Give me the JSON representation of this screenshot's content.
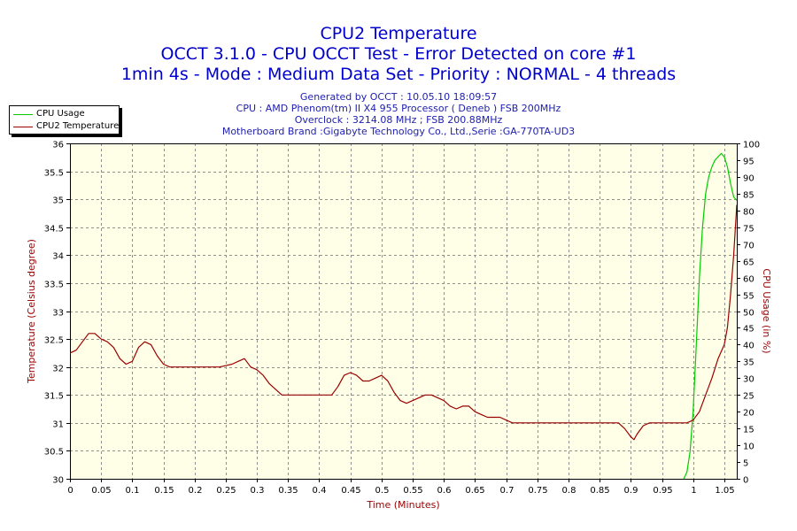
{
  "titles": {
    "line1": "CPU2 Temperature",
    "line2": "OCCT 3.1.0 - CPU OCCT Test - Error Detected on core #1",
    "line3": "1min 4s - Mode : Medium Data Set - Priority : NORMAL - 4 threads"
  },
  "info": {
    "generated": "Generated by OCCT : 10.05.10 18:09:57",
    "cpu": "CPU : AMD Phenom(tm) II X4 955 Processor ( Deneb ) FSB 200MHz",
    "overclock": "Overclock : 3214.08 MHz ; FSB 200.88MHz",
    "motherboard": "Motherboard Brand :Gigabyte Technology Co., Ltd.,Serie :GA-770TA-UD3"
  },
  "colors": {
    "plot_bg": "#ffffe8",
    "grid": "#909090",
    "cpu_usage": "#00cc00",
    "temperature": "#990000",
    "axis_label": "#990000"
  },
  "chart_data": {
    "type": "line",
    "xlabel": "Time (Minutes)",
    "ylabel": "Temperature (Celsius degree)",
    "y2label": "CPU Usage (in %)",
    "xlim": [
      0,
      1.07
    ],
    "ylim": [
      30,
      36
    ],
    "y2lim": [
      0,
      100
    ],
    "x_ticks": [
      "0",
      "0.05",
      "0.1",
      "0.15",
      "0.2",
      "0.25",
      "0.3",
      "0.35",
      "0.4",
      "0.45",
      "0.5",
      "0.55",
      "0.6",
      "0.65",
      "0.7",
      "0.75",
      "0.8",
      "0.85",
      "0.9",
      "0.95",
      "1",
      "1.05"
    ],
    "y_ticks": [
      "30",
      "30.5",
      "31",
      "31.5",
      "32",
      "32.5",
      "33",
      "33.5",
      "34",
      "34.5",
      "35",
      "35.5",
      "36"
    ],
    "y2_ticks": [
      "0",
      "5",
      "10",
      "15",
      "20",
      "25",
      "30",
      "35",
      "40",
      "45",
      "50",
      "55",
      "60",
      "65",
      "70",
      "75",
      "80",
      "85",
      "90",
      "95",
      "100"
    ],
    "grid": true,
    "legend": "top-left",
    "series": [
      {
        "name": "CPU Usage",
        "axis": "right",
        "x": [
          0.985,
          0.99,
          0.995,
          1.0,
          1.005,
          1.01,
          1.015,
          1.02,
          1.025,
          1.03,
          1.035,
          1.04,
          1.045,
          1.05,
          1.055,
          1.06,
          1.065,
          1.07
        ],
        "y": [
          0,
          2,
          8,
          20,
          40,
          60,
          75,
          85,
          90,
          93,
          95,
          96,
          97,
          96,
          93,
          88,
          84,
          83
        ]
      },
      {
        "name": "CPU2 Temperature",
        "axis": "left",
        "x": [
          0,
          0.01,
          0.02,
          0.03,
          0.04,
          0.05,
          0.06,
          0.07,
          0.08,
          0.09,
          0.1,
          0.11,
          0.12,
          0.13,
          0.14,
          0.15,
          0.16,
          0.17,
          0.2,
          0.24,
          0.26,
          0.27,
          0.28,
          0.29,
          0.3,
          0.31,
          0.32,
          0.33,
          0.34,
          0.35,
          0.38,
          0.4,
          0.42,
          0.43,
          0.44,
          0.45,
          0.46,
          0.47,
          0.48,
          0.49,
          0.5,
          0.51,
          0.52,
          0.53,
          0.54,
          0.55,
          0.56,
          0.57,
          0.58,
          0.59,
          0.6,
          0.61,
          0.62,
          0.63,
          0.64,
          0.65,
          0.66,
          0.67,
          0.68,
          0.69,
          0.7,
          0.71,
          0.75,
          0.8,
          0.85,
          0.87,
          0.88,
          0.89,
          0.9,
          0.905,
          0.91,
          0.92,
          0.93,
          0.95,
          0.99,
          1.0,
          1.01,
          1.02,
          1.03,
          1.04,
          1.05,
          1.055,
          1.06,
          1.065,
          1.07
        ],
        "y": [
          32.25,
          32.3,
          32.45,
          32.6,
          32.6,
          32.5,
          32.45,
          32.35,
          32.15,
          32.05,
          32.1,
          32.35,
          32.45,
          32.4,
          32.2,
          32.05,
          32.0,
          32.0,
          32.0,
          32.0,
          32.05,
          32.1,
          32.15,
          32.0,
          31.95,
          31.85,
          31.7,
          31.6,
          31.5,
          31.5,
          31.5,
          31.5,
          31.5,
          31.65,
          31.85,
          31.9,
          31.85,
          31.75,
          31.75,
          31.8,
          31.85,
          31.75,
          31.55,
          31.4,
          31.35,
          31.4,
          31.45,
          31.5,
          31.5,
          31.45,
          31.4,
          31.3,
          31.25,
          31.3,
          31.3,
          31.2,
          31.15,
          31.1,
          31.1,
          31.1,
          31.05,
          31.0,
          31.0,
          31.0,
          31.0,
          31.0,
          31.0,
          30.9,
          30.75,
          30.7,
          30.8,
          30.95,
          31.0,
          31.0,
          31.0,
          31.05,
          31.2,
          31.5,
          31.8,
          32.15,
          32.4,
          32.7,
          33.3,
          34.0,
          34.9
        ]
      }
    ]
  }
}
